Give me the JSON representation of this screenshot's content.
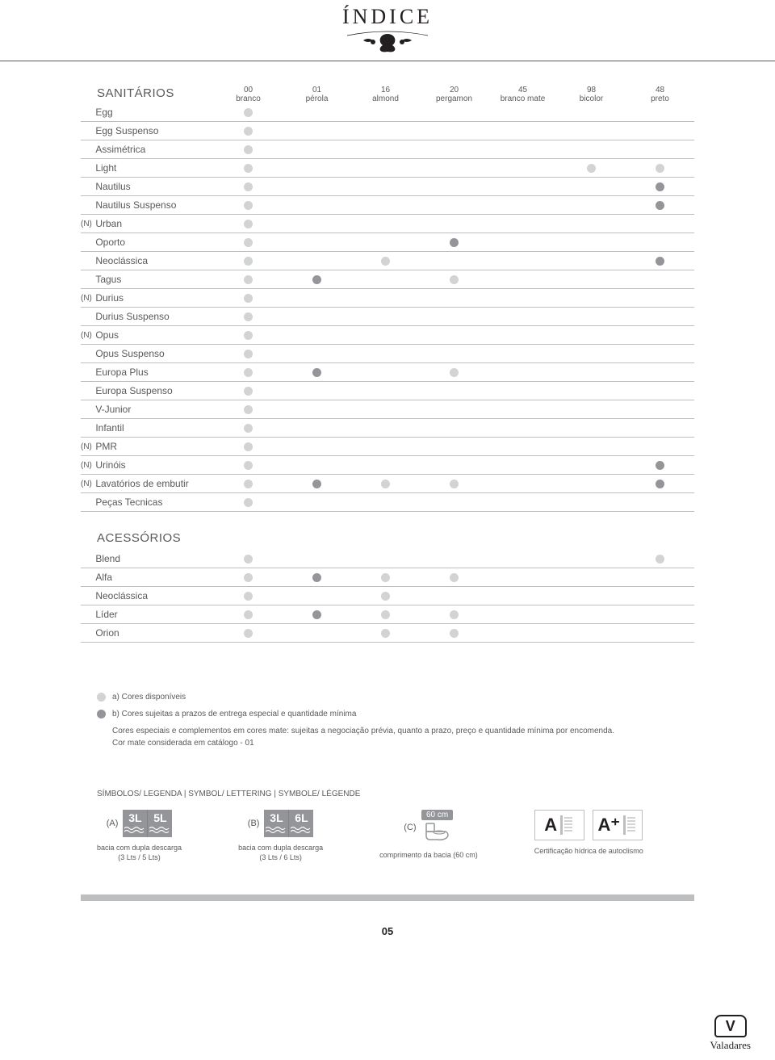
{
  "header": {
    "title": "ÍNDICE"
  },
  "columns": [
    {
      "code": "00",
      "name": "branco"
    },
    {
      "code": "01",
      "name": "pérola"
    },
    {
      "code": "16",
      "name": "almond"
    },
    {
      "code": "20",
      "name": "pergamon"
    },
    {
      "code": "45",
      "name": "branco mate"
    },
    {
      "code": "98",
      "name": "bicolor"
    },
    {
      "code": "48",
      "name": "preto"
    }
  ],
  "sanitarios": {
    "title": "SANITÁRIOS",
    "rows": [
      {
        "marker": "",
        "label": "Egg",
        "dots": [
          "light",
          "",
          "",
          "",
          "",
          "",
          ""
        ]
      },
      {
        "marker": "",
        "label": "Egg Suspenso",
        "dots": [
          "light",
          "",
          "",
          "",
          "",
          "",
          ""
        ]
      },
      {
        "marker": "",
        "label": "Assimétrica",
        "dots": [
          "light",
          "",
          "",
          "",
          "",
          "",
          ""
        ]
      },
      {
        "marker": "",
        "label": "Light",
        "dots": [
          "light",
          "",
          "",
          "",
          "",
          "light",
          "light"
        ]
      },
      {
        "marker": "",
        "label": "Nautilus",
        "dots": [
          "light",
          "",
          "",
          "",
          "",
          "",
          "dark"
        ]
      },
      {
        "marker": "",
        "label": "Nautilus Suspenso",
        "dots": [
          "light",
          "",
          "",
          "",
          "",
          "",
          "dark"
        ]
      },
      {
        "marker": "(N)",
        "label": "Urban",
        "dots": [
          "light",
          "",
          "",
          "",
          "",
          "",
          ""
        ]
      },
      {
        "marker": "",
        "label": "Oporto",
        "dots": [
          "light",
          "",
          "",
          "dark",
          "",
          "",
          ""
        ]
      },
      {
        "marker": "",
        "label": "Neoclássica",
        "dots": [
          "light",
          "",
          "light",
          "",
          "",
          "",
          "dark"
        ]
      },
      {
        "marker": "",
        "label": "Tagus",
        "dots": [
          "light",
          "dark",
          "",
          "light",
          "",
          "",
          ""
        ]
      },
      {
        "marker": "(N)",
        "label": "Durius",
        "dots": [
          "light",
          "",
          "",
          "",
          "",
          "",
          ""
        ]
      },
      {
        "marker": "",
        "label": "Durius Suspenso",
        "dots": [
          "light",
          "",
          "",
          "",
          "",
          "",
          ""
        ]
      },
      {
        "marker": "(N)",
        "label": "Opus",
        "dots": [
          "light",
          "",
          "",
          "",
          "",
          "",
          ""
        ]
      },
      {
        "marker": "",
        "label": "Opus Suspenso",
        "dots": [
          "light",
          "",
          "",
          "",
          "",
          "",
          ""
        ]
      },
      {
        "marker": "",
        "label": "Europa Plus",
        "dots": [
          "light",
          "dark",
          "",
          "light",
          "",
          "",
          ""
        ]
      },
      {
        "marker": "",
        "label": "Europa Suspenso",
        "dots": [
          "light",
          "",
          "",
          "",
          "",
          "",
          ""
        ]
      },
      {
        "marker": "",
        "label": "V-Junior",
        "dots": [
          "light",
          "",
          "",
          "",
          "",
          "",
          ""
        ]
      },
      {
        "marker": "",
        "label": "Infantil",
        "dots": [
          "light",
          "",
          "",
          "",
          "",
          "",
          ""
        ]
      },
      {
        "marker": "(N)",
        "label": "PMR",
        "dots": [
          "light",
          "",
          "",
          "",
          "",
          "",
          ""
        ]
      },
      {
        "marker": "(N)",
        "label": "Urinóis",
        "dots": [
          "light",
          "",
          "",
          "",
          "",
          "",
          "dark"
        ]
      },
      {
        "marker": "(N)",
        "label": "Lavatórios de embutir",
        "dots": [
          "light",
          "dark",
          "light",
          "light",
          "",
          "",
          "dark"
        ]
      },
      {
        "marker": "",
        "label": "Peças Tecnicas",
        "dots": [
          "light",
          "",
          "",
          "",
          "",
          "",
          ""
        ]
      }
    ]
  },
  "acessorios": {
    "title": "ACESSÓRIOS",
    "rows": [
      {
        "marker": "",
        "label": "Blend",
        "dots": [
          "light",
          "",
          "",
          "",
          "",
          "",
          "light"
        ]
      },
      {
        "marker": "",
        "label": "Alfa",
        "dots": [
          "light",
          "dark",
          "light",
          "light",
          "",
          "",
          ""
        ]
      },
      {
        "marker": "",
        "label": "Neoclássica",
        "dots": [
          "light",
          "",
          "light",
          "",
          "",
          "",
          ""
        ]
      },
      {
        "marker": "",
        "label": "Líder",
        "dots": [
          "light",
          "dark",
          "light",
          "light",
          "",
          "",
          ""
        ]
      },
      {
        "marker": "",
        "label": "Orion",
        "dots": [
          "light",
          "",
          "light",
          "light",
          "",
          "",
          ""
        ]
      }
    ]
  },
  "legend": {
    "a": "a) Cores disponíveis",
    "b": "b) Cores sujeitas a prazos de entrega especial e quantidade mínima",
    "note1": "Cores especiais e complementos em cores mate: sujeitas a negociação prévia, quanto a prazo, preço e quantidade mínima por encomenda.",
    "note2": "Cor mate considerada em catálogo - 01"
  },
  "symbols": {
    "title": "SÍMBOLOS/ LEGENDA | SYMBOL/ LETTERING | SYMBOLE/ LÉGENDE",
    "items": [
      {
        "letter": "(A)",
        "g": "flush35",
        "caption": "bacia com dupla descarga\n(3 Lts / 5 Lts)"
      },
      {
        "letter": "(B)",
        "g": "flush36",
        "caption": "bacia com dupla descarga\n(3 Lts / 6 Lts)"
      },
      {
        "letter": "(C)",
        "g": "bacia60",
        "caption": "comprimento da bacia (60 cm)"
      },
      {
        "letter": "",
        "g": "cert",
        "caption": "Certificação hídrica de autoclismo"
      }
    ]
  },
  "flush35": {
    "l": "3L",
    "r": "5L"
  },
  "flush36": {
    "l": "3L",
    "r": "6L"
  },
  "bacia60": "60 cm",
  "certA": "A",
  "certAplus": "A⁺",
  "page": "05",
  "brand": "Valadares",
  "colors": {
    "dot_light": "#d1d3d4",
    "dot_dark": "#939598",
    "text": "#58595b",
    "rule": "#bcbec0"
  }
}
